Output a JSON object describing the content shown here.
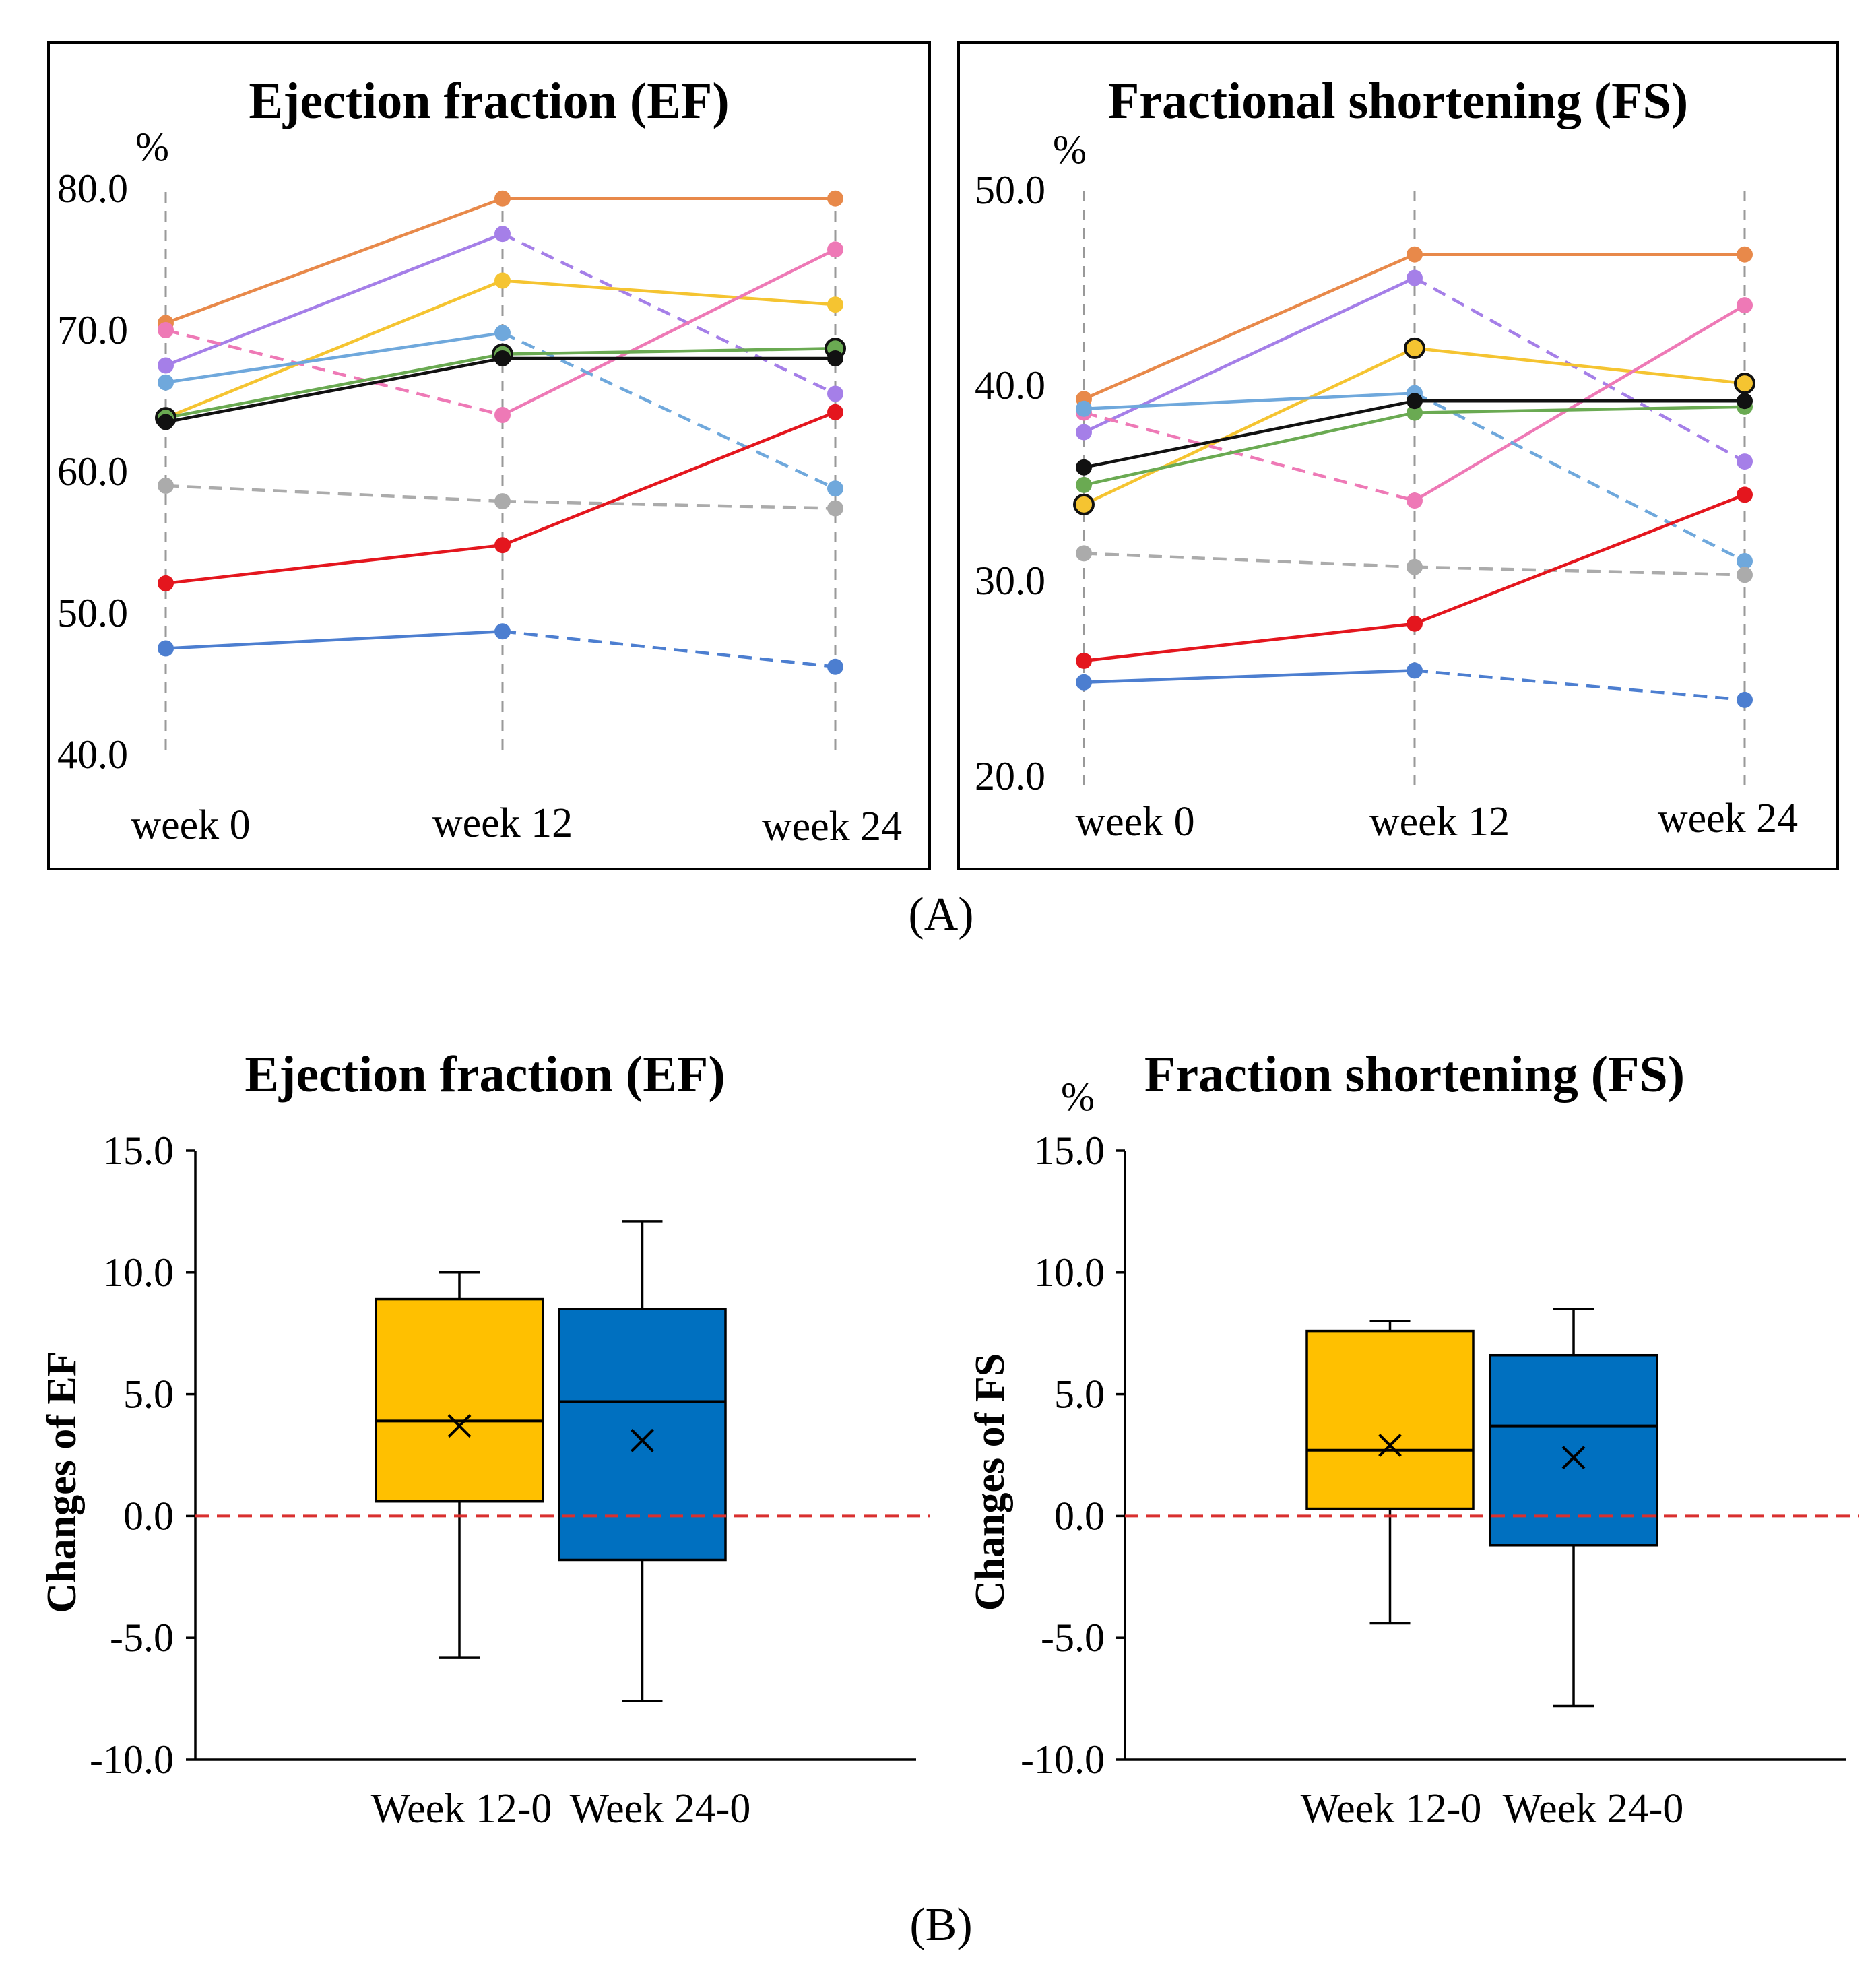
{
  "figure": {
    "panel_a_label": "(A)",
    "panel_b_label": "(B)"
  },
  "chart_data": [
    {
      "type": "line",
      "title": "Ejection fraction (EF)",
      "unit": "%",
      "categories": [
        "week 0",
        "week 12",
        "week 24"
      ],
      "yticks": [
        "40.0",
        "50.0",
        "60.0",
        "70.0",
        "80.0"
      ],
      "ylim": [
        40,
        80
      ],
      "grid": "vertical dashed at each week",
      "series": [
        {
          "name": "orange",
          "color": "#E8894A",
          "values": [
            70.5,
            79.3,
            79.3
          ],
          "dash": [
            false,
            false
          ]
        },
        {
          "name": "purple",
          "color": "#A57FE8",
          "values": [
            67.5,
            76.8,
            65.5
          ],
          "dash": [
            false,
            true
          ]
        },
        {
          "name": "yellow",
          "color": "#F5C431",
          "values": [
            63.8,
            73.5,
            71.8
          ],
          "dash": [
            false,
            false
          ]
        },
        {
          "name": "pink",
          "color": "#EE79B6",
          "values": [
            70.0,
            64.0,
            75.7
          ],
          "dash": [
            true,
            false
          ]
        },
        {
          "name": "light-blue",
          "color": "#6FA8DC",
          "values": [
            66.3,
            69.8,
            58.8
          ],
          "dash": [
            false,
            true
          ]
        },
        {
          "name": "green",
          "color": "#6AAA52",
          "values": [
            63.8,
            68.3,
            68.7
          ],
          "dash": [
            false,
            false
          ],
          "outline": true
        },
        {
          "name": "black",
          "color": "#111111",
          "values": [
            63.5,
            68.0,
            68.0
          ],
          "dash": [
            false,
            false
          ]
        },
        {
          "name": "gray",
          "color": "#ABABAB",
          "values": [
            59.0,
            57.9,
            57.4
          ],
          "dash": [
            true,
            true
          ]
        },
        {
          "name": "red",
          "color": "#E4161E",
          "values": [
            52.1,
            54.8,
            64.2
          ],
          "dash": [
            false,
            false
          ]
        },
        {
          "name": "blue",
          "color": "#4C7ED0",
          "values": [
            47.5,
            48.7,
            46.2
          ],
          "dash": [
            false,
            true
          ]
        }
      ]
    },
    {
      "type": "line",
      "title": "Fractional shortening (FS)",
      "unit": "%",
      "categories": [
        "week 0",
        "week 12",
        "week 24"
      ],
      "yticks": [
        "20.0",
        "30.0",
        "40.0",
        "50.0"
      ],
      "ylim": [
        20,
        50
      ],
      "grid": "vertical dashed at each week",
      "series": [
        {
          "name": "orange",
          "color": "#E8894A",
          "values": [
            39.3,
            46.7,
            46.7
          ],
          "dash": [
            false,
            false
          ]
        },
        {
          "name": "purple",
          "color": "#A57FE8",
          "values": [
            37.6,
            45.5,
            36.1
          ],
          "dash": [
            false,
            true
          ]
        },
        {
          "name": "yellow",
          "color": "#F5C431",
          "values": [
            33.9,
            41.9,
            40.1
          ],
          "dash": [
            false,
            false
          ],
          "outline": true
        },
        {
          "name": "pink",
          "color": "#EE79B6",
          "values": [
            38.6,
            34.1,
            44.1
          ],
          "dash": [
            true,
            false
          ]
        },
        {
          "name": "light-blue",
          "color": "#6FA8DC",
          "values": [
            38.8,
            39.6,
            31.0
          ],
          "dash": [
            false,
            true
          ]
        },
        {
          "name": "green",
          "color": "#6AAA52",
          "values": [
            34.9,
            38.6,
            38.9
          ],
          "dash": [
            false,
            false
          ]
        },
        {
          "name": "black",
          "color": "#111111",
          "values": [
            35.8,
            39.2,
            39.2
          ],
          "dash": [
            false,
            false
          ]
        },
        {
          "name": "gray",
          "color": "#ABABAB",
          "values": [
            31.4,
            30.7,
            30.3
          ],
          "dash": [
            true,
            true
          ]
        },
        {
          "name": "red",
          "color": "#E4161E",
          "values": [
            25.9,
            27.8,
            34.4
          ],
          "dash": [
            false,
            false
          ]
        },
        {
          "name": "blue",
          "color": "#4C7ED0",
          "values": [
            24.8,
            25.4,
            23.9
          ],
          "dash": [
            false,
            true
          ]
        }
      ]
    },
    {
      "type": "box",
      "title": "Ejection fraction (EF)",
      "ylabel": "Changes of  EF",
      "yticks": [
        "15.0",
        "10.0",
        "5.0",
        "0.0",
        "-5.0",
        "-10.0"
      ],
      "ylim": [
        -10,
        15
      ],
      "reference_line": 0,
      "boxes": [
        {
          "label": "Week 12-0",
          "color": "#FFC000",
          "min": -5.8,
          "q1": 0.6,
          "median": 3.9,
          "q3": 8.9,
          "max": 10.0,
          "mean": 3.7
        },
        {
          "label": "Week 24-0",
          "color": "#0070C0",
          "min": -7.6,
          "q1": -1.8,
          "median": 4.7,
          "q3": 8.5,
          "max": 12.1,
          "mean": 3.1
        }
      ]
    },
    {
      "type": "box",
      "title": "Fraction shortening (FS)",
      "unit": "%",
      "ylabel": "Changes of  FS",
      "yticks": [
        "15.0",
        "10.0",
        "5.0",
        "0.0",
        "-5.0",
        "-10.0"
      ],
      "ylim": [
        -10,
        15
      ],
      "reference_line": 0,
      "boxes": [
        {
          "label": "Week 12-0",
          "color": "#FFC000",
          "min": -4.4,
          "q1": 0.3,
          "median": 2.7,
          "q3": 7.6,
          "max": 8.0,
          "mean": 2.9
        },
        {
          "label": "Week 24-0",
          "color": "#0070C0",
          "min": -7.8,
          "q1": -1.2,
          "median": 3.7,
          "q3": 6.6,
          "max": 8.5,
          "mean": 2.4
        }
      ]
    }
  ]
}
